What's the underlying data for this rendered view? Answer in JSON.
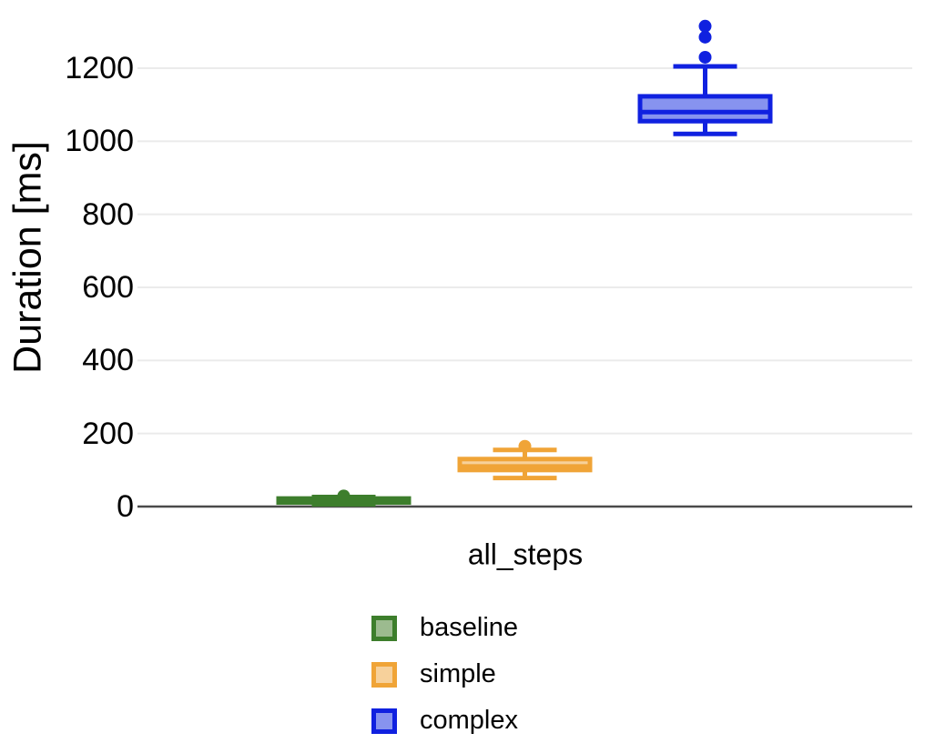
{
  "chart_data": {
    "type": "boxplot",
    "title": "",
    "ylabel": "Duration [ms]",
    "x_category": "all_steps",
    "ylim": [
      0,
      1340
    ],
    "ytick_values": [
      0,
      200,
      400,
      600,
      800,
      1000,
      1200
    ],
    "ytick_labels": [
      "0",
      "200",
      "400",
      "600",
      "800",
      "1000",
      "1200"
    ],
    "grid": true,
    "legend_position": "bottom",
    "series": [
      {
        "name": "baseline",
        "stroke": "#3D7E2C",
        "fill": "#9CBB8F",
        "stats": {
          "whisker_low": 6,
          "q1": 11,
          "median": 16,
          "q3": 22,
          "whisker_high": 26,
          "outliers": [
            29
          ]
        }
      },
      {
        "name": "simple",
        "stroke": "#F0A437",
        "fill": "#F7D19B",
        "stats": {
          "whisker_low": 78,
          "q1": 100,
          "median": 110,
          "q3": 130,
          "whisker_high": 155,
          "outliers": [
            165
          ]
        }
      },
      {
        "name": "complex",
        "stroke": "#1021E0",
        "fill": "#8793EF",
        "stats": {
          "whisker_low": 1020,
          "q1": 1055,
          "median": 1080,
          "q3": 1123,
          "whisker_high": 1205,
          "outliers": [
            1230,
            1285,
            1315
          ]
        }
      }
    ]
  },
  "colors": {
    "background": "#FFFFFF",
    "gridline": "#EBEBEB",
    "axis_line": "#4A4A4A",
    "text": "#000000"
  }
}
